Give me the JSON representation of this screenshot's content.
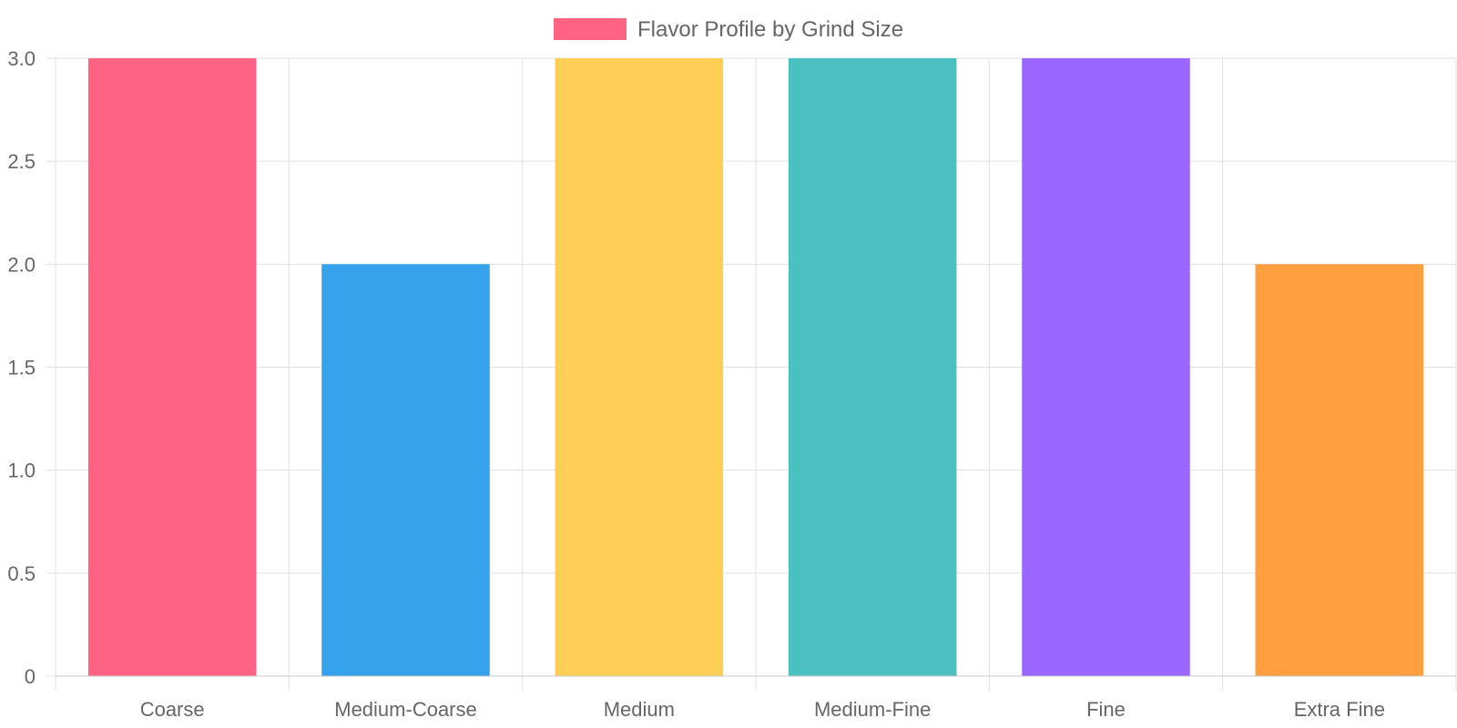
{
  "chart_data": {
    "type": "bar",
    "categories": [
      "Coarse",
      "Medium-Coarse",
      "Medium",
      "Medium-Fine",
      "Fine",
      "Extra Fine"
    ],
    "series": [
      {
        "name": "Flavor Profile by Grind Size",
        "values": [
          3,
          2,
          3,
          3,
          3,
          2
        ],
        "colors": [
          "#ff6384",
          "#36a2eb",
          "#ffce56",
          "#4bc0c0",
          "#9966ff",
          "#ff9f40"
        ]
      }
    ],
    "title": "",
    "xlabel": "",
    "ylabel": "",
    "ylim": [
      0,
      3
    ],
    "yticks": [
      "0",
      "0.5",
      "1.0",
      "1.5",
      "2.0",
      "2.5",
      "3.0"
    ],
    "grid": true,
    "legend_position": "top-center",
    "legend_color": "#ff6384"
  }
}
